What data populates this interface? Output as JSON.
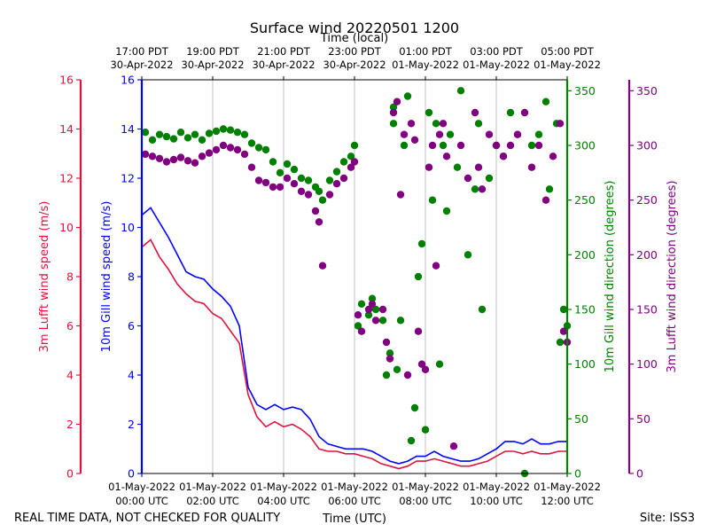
{
  "chart_data": {
    "type": "line+scatter",
    "title": "Surface wind 20220501 1200",
    "top_axis_label": "Time (local)",
    "bottom_axis_label": "Time (UTC)",
    "footer_left": "REAL TIME DATA, NOT CHECKED FOR QUALITY",
    "footer_right": "Site: ISS3",
    "x_range_hours": [
      0,
      12
    ],
    "x_ticks_bottom": [
      {
        "hour": 0,
        "line1": "01-May-2022",
        "line2": "00:00 UTC"
      },
      {
        "hour": 2,
        "line1": "01-May-2022",
        "line2": "02:00 UTC"
      },
      {
        "hour": 4,
        "line1": "01-May-2022",
        "line2": "04:00 UTC"
      },
      {
        "hour": 6,
        "line1": "01-May-2022",
        "line2": "06:00 UTC"
      },
      {
        "hour": 8,
        "line1": "01-May-2022",
        "line2": "08:00 UTC"
      },
      {
        "hour": 10,
        "line1": "01-May-2022",
        "line2": "10:00 UTC"
      },
      {
        "hour": 12,
        "line1": "01-May-2022",
        "line2": "12:00 UTC"
      }
    ],
    "x_ticks_top": [
      {
        "hour": 0,
        "line1": "17:00 PDT",
        "line2": "30-Apr-2022"
      },
      {
        "hour": 2,
        "line1": "19:00 PDT",
        "line2": "30-Apr-2022"
      },
      {
        "hour": 4,
        "line1": "21:00 PDT",
        "line2": "30-Apr-2022"
      },
      {
        "hour": 6,
        "line1": "23:00 PDT",
        "line2": "30-Apr-2022"
      },
      {
        "hour": 8,
        "line1": "01:00 PDT",
        "line2": "01-May-2022"
      },
      {
        "hour": 10,
        "line1": "03:00 PDT",
        "line2": "01-May-2022"
      },
      {
        "hour": 12,
        "line1": "05:00 PDT",
        "line2": "01-May-2022"
      }
    ],
    "axes": {
      "lufft_speed": {
        "label": "3m Lufft wind speed (m/s)",
        "color": "#dc143c",
        "range": [
          0,
          16
        ],
        "ticks": [
          "0",
          "2",
          "4",
          "6",
          "8",
          "10",
          "12",
          "14",
          "16"
        ]
      },
      "gill_speed": {
        "label": "10m Gill wind speed (m/s)",
        "color": "#0000ff",
        "range": [
          0,
          16
        ],
        "ticks": [
          "0",
          "2",
          "4",
          "6",
          "8",
          "10",
          "12",
          "14",
          "16"
        ]
      },
      "gill_dir": {
        "label": "10m Gill wind direction (degrees)",
        "color": "#008000",
        "range": [
          0,
          360
        ],
        "ticks": [
          "0",
          "50",
          "100",
          "150",
          "200",
          "250",
          "300",
          "350"
        ]
      },
      "lufft_dir": {
        "label": "3m Lufft wind direction (degrees)",
        "color": "#800080",
        "range": [
          0,
          360
        ],
        "ticks": [
          "0",
          "50",
          "100",
          "150",
          "200",
          "250",
          "300",
          "350"
        ]
      }
    },
    "series": [
      {
        "name": "10m Gill wind speed",
        "kind": "line",
        "color": "#0000ff",
        "x": [
          0,
          0.25,
          0.5,
          0.75,
          1,
          1.25,
          1.5,
          1.75,
          2,
          2.25,
          2.5,
          2.75,
          3,
          3.25,
          3.5,
          3.75,
          4,
          4.25,
          4.5,
          4.75,
          5,
          5.25,
          5.5,
          5.75,
          6,
          6.25,
          6.5,
          6.75,
          7,
          7.25,
          7.5,
          7.75,
          8,
          8.25,
          8.5,
          8.75,
          9,
          9.25,
          9.5,
          9.75,
          10,
          10.25,
          10.5,
          10.75,
          11,
          11.25,
          11.5,
          11.75,
          12
        ],
        "y": [
          10.5,
          10.8,
          10.2,
          9.6,
          8.9,
          8.2,
          8.0,
          7.9,
          7.5,
          7.2,
          6.8,
          6.0,
          3.5,
          2.8,
          2.6,
          2.8,
          2.6,
          2.7,
          2.6,
          2.2,
          1.5,
          1.2,
          1.1,
          1.0,
          1.0,
          1.0,
          0.9,
          0.7,
          0.5,
          0.4,
          0.5,
          0.7,
          0.7,
          0.9,
          0.7,
          0.6,
          0.5,
          0.5,
          0.6,
          0.8,
          1.0,
          1.3,
          1.3,
          1.2,
          1.4,
          1.2,
          1.2,
          1.3,
          1.3
        ]
      },
      {
        "name": "3m Lufft wind speed",
        "kind": "line",
        "color": "#dc143c",
        "x": [
          0,
          0.25,
          0.5,
          0.75,
          1,
          1.25,
          1.5,
          1.75,
          2,
          2.25,
          2.5,
          2.75,
          3,
          3.25,
          3.5,
          3.75,
          4,
          4.25,
          4.5,
          4.75,
          5,
          5.25,
          5.5,
          5.75,
          6,
          6.25,
          6.5,
          6.75,
          7,
          7.25,
          7.5,
          7.75,
          8,
          8.25,
          8.5,
          8.75,
          9,
          9.25,
          9.5,
          9.75,
          10,
          10.25,
          10.5,
          10.75,
          11,
          11.25,
          11.5,
          11.75,
          12
        ],
        "y": [
          9.2,
          9.5,
          8.8,
          8.3,
          7.7,
          7.3,
          7.0,
          6.9,
          6.5,
          6.3,
          5.8,
          5.3,
          3.2,
          2.3,
          1.9,
          2.1,
          1.9,
          2.0,
          1.8,
          1.5,
          1.0,
          0.9,
          0.9,
          0.8,
          0.8,
          0.7,
          0.6,
          0.4,
          0.3,
          0.2,
          0.3,
          0.5,
          0.5,
          0.6,
          0.5,
          0.4,
          0.3,
          0.3,
          0.4,
          0.5,
          0.7,
          0.9,
          0.9,
          0.8,
          0.9,
          0.8,
          0.8,
          0.9,
          0.9
        ]
      },
      {
        "name": "10m Gill wind direction",
        "kind": "scatter",
        "color": "#008000",
        "x": [
          0.1,
          0.3,
          0.5,
          0.7,
          0.9,
          1.1,
          1.3,
          1.5,
          1.7,
          1.9,
          2.1,
          2.3,
          2.5,
          2.7,
          2.9,
          3.1,
          3.3,
          3.5,
          3.7,
          3.9,
          4.1,
          4.3,
          4.5,
          4.7,
          4.9,
          5.0,
          5.1,
          5.3,
          5.5,
          5.7,
          5.9,
          6.0,
          6.1,
          6.2,
          6.4,
          6.5,
          6.6,
          6.8,
          6.9,
          7.0,
          7.1,
          7.1,
          7.2,
          7.3,
          7.4,
          7.5,
          7.6,
          7.7,
          7.8,
          7.9,
          8.0,
          8.1,
          8.2,
          8.3,
          8.4,
          8.5,
          8.6,
          8.7,
          8.9,
          9.0,
          9.2,
          9.4,
          9.5,
          9.6,
          9.8,
          10.0,
          10.2,
          10.4,
          10.6,
          10.8,
          11.0,
          11.2,
          11.4,
          11.5,
          11.7,
          11.8,
          11.9,
          12.0
        ],
        "y": [
          312,
          305,
          310,
          308,
          306,
          312,
          307,
          310,
          305,
          311,
          313,
          315,
          314,
          312,
          310,
          302,
          298,
          296,
          285,
          275,
          283,
          278,
          270,
          268,
          262,
          258,
          250,
          268,
          276,
          285,
          290,
          300,
          135,
          155,
          145,
          160,
          150,
          140,
          90,
          110,
          335,
          320,
          95,
          140,
          300,
          345,
          30,
          60,
          180,
          210,
          40,
          330,
          250,
          320,
          100,
          300,
          240,
          310,
          280,
          350,
          200,
          260,
          320,
          150,
          270,
          300,
          290,
          330,
          310,
          0,
          300,
          310,
          340,
          260,
          320,
          120,
          150,
          135
        ]
      },
      {
        "name": "3m Lufft wind direction",
        "kind": "scatter",
        "color": "#800080",
        "x": [
          0.1,
          0.3,
          0.5,
          0.7,
          0.9,
          1.1,
          1.3,
          1.5,
          1.7,
          1.9,
          2.1,
          2.3,
          2.5,
          2.7,
          2.9,
          3.1,
          3.3,
          3.5,
          3.7,
          3.9,
          4.1,
          4.3,
          4.5,
          4.7,
          4.9,
          5.0,
          5.1,
          5.3,
          5.5,
          5.7,
          5.9,
          6.0,
          6.1,
          6.2,
          6.4,
          6.5,
          6.6,
          6.8,
          6.9,
          7.0,
          7.1,
          7.2,
          7.3,
          7.4,
          7.5,
          7.6,
          7.7,
          7.8,
          7.9,
          8.0,
          8.1,
          8.2,
          8.3,
          8.4,
          8.5,
          8.6,
          8.8,
          9.0,
          9.2,
          9.4,
          9.5,
          9.6,
          9.8,
          10.0,
          10.2,
          10.4,
          10.6,
          10.8,
          11.0,
          11.2,
          11.4,
          11.6,
          11.8,
          11.9,
          12.0
        ],
        "y": [
          292,
          290,
          288,
          285,
          287,
          289,
          286,
          284,
          290,
          293,
          296,
          300,
          298,
          296,
          292,
          280,
          268,
          266,
          262,
          262,
          270,
          265,
          258,
          255,
          240,
          230,
          190,
          255,
          265,
          270,
          280,
          285,
          145,
          130,
          150,
          155,
          140,
          150,
          120,
          105,
          330,
          340,
          255,
          310,
          90,
          320,
          305,
          130,
          100,
          95,
          280,
          300,
          190,
          310,
          320,
          290,
          25,
          300,
          270,
          330,
          280,
          260,
          310,
          300,
          290,
          300,
          310,
          330,
          280,
          300,
          250,
          290,
          320,
          130,
          120
        ]
      }
    ]
  }
}
